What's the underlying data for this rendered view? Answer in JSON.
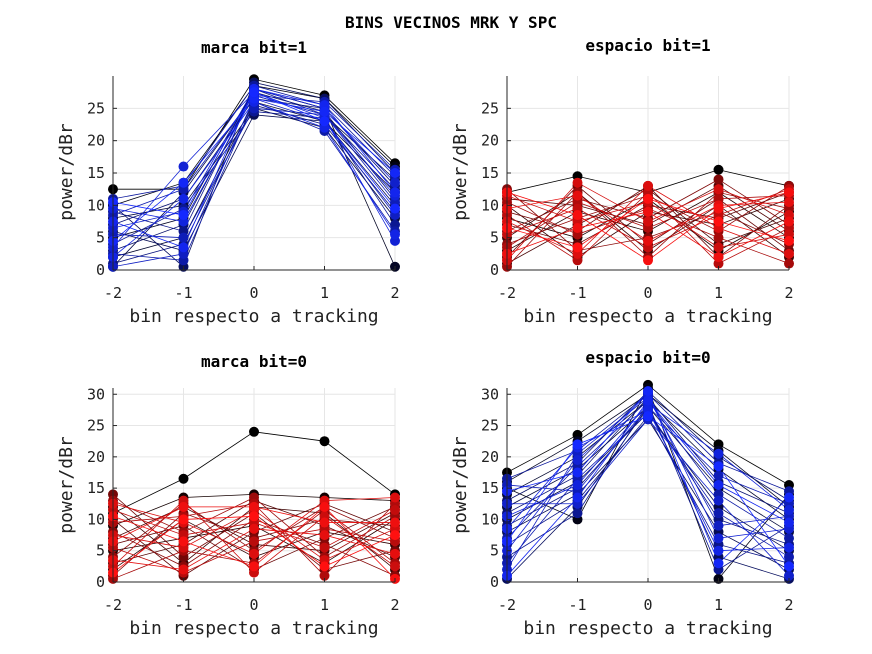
{
  "figure_title": "BINS VECINOS MRK Y SPC",
  "chart_data": [
    {
      "type": "line",
      "title": "marca bit=1",
      "xlabel": "bin respecto a tracking",
      "ylabel": "power/dBr",
      "x": [
        -2,
        -1,
        0,
        1,
        2
      ],
      "xlim": [
        -2,
        2
      ],
      "ylim": [
        0,
        30
      ],
      "xticks": [
        "-2",
        "-1",
        "0",
        "1",
        "2"
      ],
      "yticks": [
        "0",
        "5",
        "10",
        "15",
        "20",
        "25"
      ],
      "grid": true,
      "color_ramp": "black-to-blue",
      "start_color": "#000000",
      "end_color": "#1428ff",
      "series": [
        {
          "values": [
            12.5,
            12.5,
            29.5,
            27,
            16.5
          ]
        },
        {
          "values": [
            10,
            13.5,
            28.5,
            26.5,
            16
          ]
        },
        {
          "values": [
            5,
            8,
            28,
            25,
            0.5
          ]
        },
        {
          "values": [
            2,
            5,
            26,
            23,
            12
          ]
        },
        {
          "values": [
            8,
            10,
            25,
            22,
            8
          ]
        },
        {
          "values": [
            0.5,
            12,
            27,
            24,
            14
          ]
        },
        {
          "values": [
            6,
            3,
            24,
            23,
            10
          ]
        },
        {
          "values": [
            10,
            0.5,
            29,
            26.5,
            15
          ]
        },
        {
          "values": [
            3,
            7,
            27.5,
            24.5,
            11
          ]
        },
        {
          "values": [
            7,
            11,
            26.5,
            25,
            13
          ]
        },
        {
          "values": [
            1,
            4,
            25.5,
            22.5,
            9
          ]
        },
        {
          "values": [
            9,
            6,
            28,
            24,
            12.5
          ]
        },
        {
          "values": [
            4,
            9.5,
            24.5,
            23.5,
            7
          ]
        },
        {
          "values": [
            11,
            13,
            28.5,
            25.5,
            14.5
          ]
        },
        {
          "values": [
            2.5,
            1.5,
            26,
            21.5,
            6
          ]
        },
        {
          "values": [
            8.5,
            12.5,
            27,
            26,
            15.5
          ]
        },
        {
          "values": [
            5.5,
            5,
            25,
            24,
            10.5
          ]
        },
        {
          "values": [
            0.5,
            2.5,
            26.5,
            23,
            8.5
          ]
        },
        {
          "values": [
            6.5,
            9,
            28,
            25,
            13.5
          ]
        },
        {
          "values": [
            3.5,
            16,
            27.5,
            23.5,
            4.5
          ]
        },
        {
          "values": [
            9.5,
            7.5,
            27,
            24,
            11.5
          ]
        },
        {
          "values": [
            2,
            11,
            26,
            22,
            5.5
          ]
        },
        {
          "values": [
            7.5,
            3.5,
            28,
            25.5,
            12
          ]
        },
        {
          "values": [
            4.5,
            13.5,
            26.5,
            24.5,
            15
          ]
        },
        {
          "values": [
            10.5,
            8.5,
            27.5,
            23,
            9.5
          ]
        }
      ]
    },
    {
      "type": "line",
      "title": "espacio bit=1",
      "xlabel": "bin respecto a tracking",
      "ylabel": "power/dBr",
      "x": [
        -2,
        -1,
        0,
        1,
        2
      ],
      "xlim": [
        -2,
        2
      ],
      "ylim": [
        0,
        30
      ],
      "xticks": [
        "-2",
        "-1",
        "0",
        "1",
        "2"
      ],
      "yticks": [
        "0",
        "5",
        "10",
        "15",
        "20",
        "25"
      ],
      "grid": true,
      "color_ramp": "black-to-red",
      "start_color": "#000000",
      "end_color": "#ff1010",
      "series": [
        {
          "values": [
            12,
            14.5,
            12,
            15.5,
            13
          ]
        },
        {
          "values": [
            8,
            5,
            11,
            3,
            9
          ]
        },
        {
          "values": [
            3,
            9,
            6,
            12,
            5
          ]
        },
        {
          "values": [
            10,
            2,
            9,
            7,
            11
          ]
        },
        {
          "values": [
            5,
            12,
            3,
            10,
            2
          ]
        },
        {
          "values": [
            1,
            7,
            12.5,
            4,
            8
          ]
        },
        {
          "values": [
            11,
            10,
            7,
            13,
            6
          ]
        },
        {
          "values": [
            7,
            4,
            10,
            8,
            12
          ]
        },
        {
          "values": [
            2,
            13,
            4,
            11,
            3
          ]
        },
        {
          "values": [
            9,
            6,
            13,
            2,
            10
          ]
        },
        {
          "values": [
            6,
            11,
            8,
            14,
            7
          ]
        },
        {
          "values": [
            12.5,
            3,
            5,
            9,
            4
          ]
        },
        {
          "values": [
            4,
            8,
            11.5,
            6,
            13
          ]
        },
        {
          "values": [
            0.5,
            12,
            2,
            12,
            9.5
          ]
        },
        {
          "values": [
            10.5,
            5.5,
            9.5,
            5,
            1
          ]
        },
        {
          "values": [
            3.5,
            10.5,
            6.5,
            11,
            11.5
          ]
        },
        {
          "values": [
            8.5,
            1.5,
            12,
            1,
            6.5
          ]
        },
        {
          "values": [
            5.5,
            9.5,
            3.5,
            8.5,
            12.5
          ]
        },
        {
          "values": [
            11.5,
            7.5,
            10.5,
            3.5,
            5.5
          ]
        },
        {
          "values": [
            1.5,
            13.5,
            7.5,
            12.5,
            8.5
          ]
        },
        {
          "values": [
            7.5,
            2.5,
            13,
            6.5,
            2.5
          ]
        },
        {
          "values": [
            9.5,
            11.5,
            4.5,
            10,
            10.5
          ]
        },
        {
          "values": [
            2.5,
            6.5,
            9,
            2,
            7.5
          ]
        },
        {
          "values": [
            12,
            8.5,
            1.5,
            9.5,
            12
          ]
        },
        {
          "values": [
            6.5,
            3.5,
            11,
            7.5,
            4.5
          ]
        }
      ]
    },
    {
      "type": "line",
      "title": "marca bit=0",
      "xlabel": "bin respecto a tracking",
      "ylabel": "power/dBr",
      "x": [
        -2,
        -1,
        0,
        1,
        2
      ],
      "xlim": [
        -2,
        2
      ],
      "ylim": [
        0,
        31
      ],
      "xticks": [
        "-2",
        "-1",
        "0",
        "1",
        "2"
      ],
      "yticks": [
        "0",
        "5",
        "10",
        "15",
        "20",
        "25",
        "30"
      ],
      "grid": true,
      "color_ramp": "black-to-red",
      "start_color": "#000000",
      "end_color": "#ff1010",
      "series": [
        {
          "values": [
            11,
            16.5,
            24,
            22.5,
            14
          ]
        },
        {
          "values": [
            9,
            13.5,
            14,
            13.5,
            13
          ]
        },
        {
          "values": [
            5,
            7,
            9,
            3,
            10
          ]
        },
        {
          "values": [
            2,
            10,
            4,
            8,
            6
          ]
        },
        {
          "values": [
            12,
            3,
            12,
            11,
            2
          ]
        },
        {
          "values": [
            7,
            12,
            6,
            5,
            11
          ]
        },
        {
          "values": [
            3,
            6,
            13,
            9,
            4
          ]
        },
        {
          "values": [
            10,
            1,
            8,
            12.5,
            8
          ]
        },
        {
          "values": [
            6,
            9,
            2,
            7,
            12
          ]
        },
        {
          "values": [
            14,
            4,
            11,
            2,
            5
          ]
        },
        {
          "values": [
            1,
            11,
            7,
            10,
            9
          ]
        },
        {
          "values": [
            8,
            2.5,
            10,
            6,
            1
          ]
        },
        {
          "values": [
            4,
            12.5,
            5,
            12,
            7
          ]
        },
        {
          "values": [
            13,
            8,
            13.5,
            4,
            10.5
          ]
        },
        {
          "values": [
            0.5,
            5,
            3,
            11.5,
            3
          ]
        },
        {
          "values": [
            9.5,
            10.5,
            12.5,
            1,
            12.5
          ]
        },
        {
          "values": [
            5.5,
            1.5,
            6.5,
            8.5,
            6.5
          ]
        },
        {
          "values": [
            11.5,
            7.5,
            9.5,
            5.5,
            11.5
          ]
        },
        {
          "values": [
            2.5,
            13,
            1.5,
            10.5,
            2.5
          ]
        },
        {
          "values": [
            7.5,
            5.5,
            11.5,
            3.5,
            8.5
          ]
        },
        {
          "values": [
            12.5,
            9.5,
            4.5,
            13,
            13.5
          ]
        },
        {
          "values": [
            3.5,
            2,
            8.5,
            7.5,
            4.5
          ]
        },
        {
          "values": [
            6.5,
            12,
            12,
            9.5,
            9.5
          ]
        },
        {
          "values": [
            10.5,
            6.5,
            2.5,
            12,
            0.5
          ]
        },
        {
          "values": [
            1.5,
            10,
            10.5,
            2.5,
            7.5
          ]
        }
      ]
    },
    {
      "type": "line",
      "title": "espacio bit=0",
      "xlabel": "bin respecto a tracking",
      "ylabel": "power/dBr",
      "x": [
        -2,
        -1,
        0,
        1,
        2
      ],
      "xlim": [
        -2,
        2
      ],
      "ylim": [
        0,
        31
      ],
      "xticks": [
        "-2",
        "-1",
        "0",
        "1",
        "2"
      ],
      "yticks": [
        "0",
        "5",
        "10",
        "15",
        "20",
        "25",
        "30"
      ],
      "grid": true,
      "color_ramp": "black-to-blue",
      "start_color": "#000000",
      "end_color": "#1428ff",
      "series": [
        {
          "values": [
            17.5,
            23.5,
            31.5,
            22,
            15.5
          ]
        },
        {
          "values": [
            15,
            10,
            31,
            0.5,
            14
          ]
        },
        {
          "values": [
            16,
            22.5,
            30,
            21,
            12
          ]
        },
        {
          "values": [
            14,
            20,
            29,
            18,
            10
          ]
        },
        {
          "values": [
            12,
            18,
            28,
            15,
            8
          ]
        },
        {
          "values": [
            10,
            16,
            27,
            12,
            5
          ]
        },
        {
          "values": [
            8,
            14,
            26,
            8,
            2
          ]
        },
        {
          "values": [
            0.5,
            12,
            28,
            4,
            0.5
          ]
        },
        {
          "values": [
            13,
            19,
            30.5,
            20,
            13
          ]
        },
        {
          "values": [
            11,
            17,
            29.5,
            16,
            11
          ]
        },
        {
          "values": [
            9,
            15,
            27.5,
            10,
            6
          ]
        },
        {
          "values": [
            6,
            13,
            26.5,
            6,
            3
          ]
        },
        {
          "values": [
            4,
            11,
            28.5,
            2,
            9
          ]
        },
        {
          "values": [
            16.5,
            21,
            30,
            19,
            14.5
          ]
        },
        {
          "values": [
            7,
            18.5,
            29,
            14,
            7
          ]
        },
        {
          "values": [
            3,
            16.5,
            27,
            11,
            4
          ]
        },
        {
          "values": [
            15.5,
            14.5,
            28,
            17,
            12.5
          ]
        },
        {
          "values": [
            2,
            20.5,
            29.5,
            9,
            10.5
          ]
        },
        {
          "values": [
            12.5,
            12.5,
            26,
            13,
            1
          ]
        },
        {
          "values": [
            5,
            19.5,
            30,
            7,
            8.5
          ]
        },
        {
          "values": [
            10.5,
            15.5,
            28.5,
            20.5,
            11.5
          ]
        },
        {
          "values": [
            8.5,
            21.5,
            27.5,
            5,
            5.5
          ]
        },
        {
          "values": [
            1,
            13.5,
            29,
            15.5,
            9.5
          ]
        },
        {
          "values": [
            14.5,
            17.5,
            30.5,
            3,
            13.5
          ]
        },
        {
          "values": [
            6.5,
            22,
            26.5,
            18.5,
            2.5
          ]
        }
      ]
    }
  ]
}
